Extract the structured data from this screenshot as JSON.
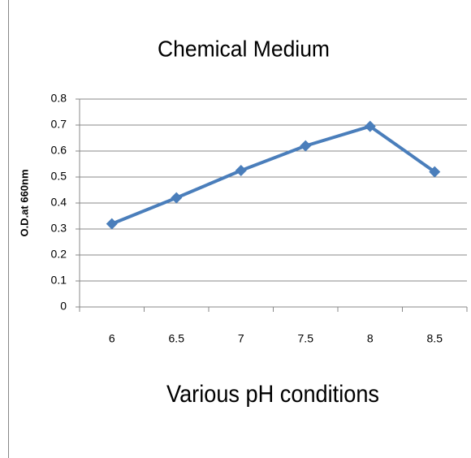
{
  "chart_data": {
    "type": "line",
    "title": "Chemical Medium",
    "x_label": "Various pH conditions",
    "y_label": "O.D.at 660nm",
    "categories": [
      "6",
      "6.5",
      "7",
      "7.5",
      "8",
      "8.5"
    ],
    "values": [
      0.32,
      0.42,
      0.525,
      0.62,
      0.695,
      0.52
    ],
    "color": "#4a7ebb",
    "ylim": [
      0,
      0.8
    ],
    "yticks": [
      0,
      0.1,
      0.2,
      0.3,
      0.4,
      0.5,
      0.6,
      0.7,
      0.8
    ],
    "grid": true
  }
}
